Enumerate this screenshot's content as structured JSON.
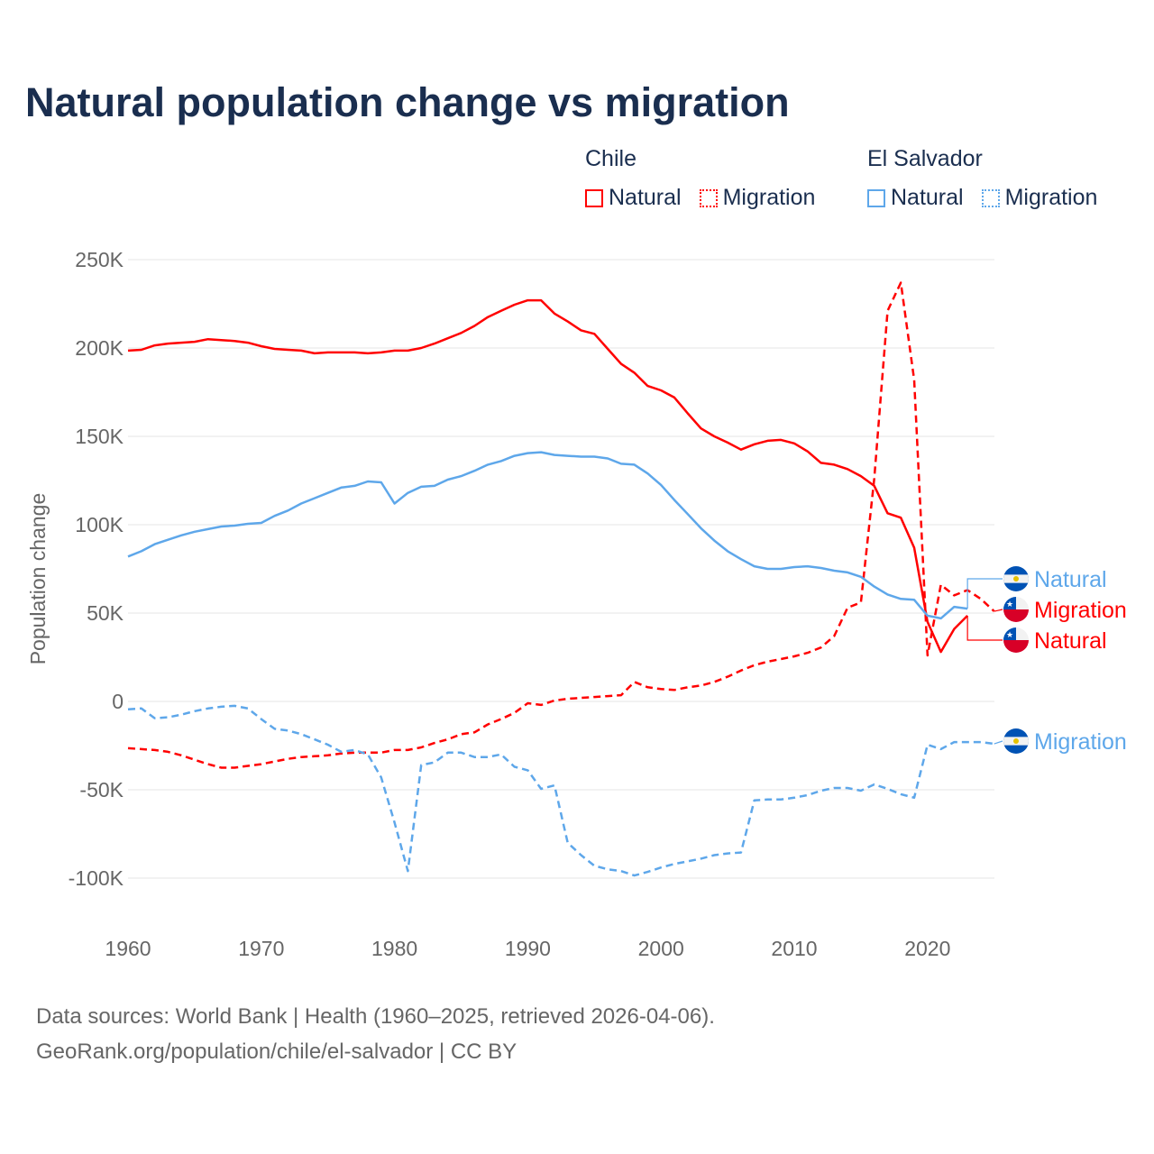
{
  "title": "Natural population change vs migration",
  "legend": {
    "groups": [
      {
        "name": "Chile",
        "items": [
          {
            "label": "Natural",
            "style": "solid",
            "color": "#ff0000"
          },
          {
            "label": "Migration",
            "style": "dotted",
            "color": "#ff0000"
          }
        ]
      },
      {
        "name": "El Salvador",
        "items": [
          {
            "label": "Natural",
            "style": "solid",
            "color": "#5ea7ea"
          },
          {
            "label": "Migration",
            "style": "dotted",
            "color": "#5ea7ea"
          }
        ]
      }
    ]
  },
  "footer": {
    "line1": "Data sources: World Bank | Health (1960–2025, retrieved 2026-04-06).",
    "line2": "GeoRank.org/population/chile/el-salvador | CC BY"
  },
  "chart_data": {
    "type": "line",
    "title": "Natural population change vs migration",
    "xlabel": "",
    "ylabel": "Population change",
    "xlim": [
      1960,
      2025
    ],
    "ylim": [
      -120000,
      250000
    ],
    "grid": true,
    "legend_position": "top-right",
    "x_ticks": [
      1960,
      1970,
      1980,
      1990,
      2000,
      2010,
      2020
    ],
    "y_ticks": [
      {
        "v": 250000,
        "label": "250K"
      },
      {
        "v": 200000,
        "label": "200K"
      },
      {
        "v": 150000,
        "label": "150K"
      },
      {
        "v": 100000,
        "label": "100K"
      },
      {
        "v": 50000,
        "label": "50K"
      },
      {
        "v": 0,
        "label": "0"
      },
      {
        "v": -50000,
        "label": "-50K"
      },
      {
        "v": -100000,
        "label": "-100K"
      }
    ],
    "series": [
      {
        "name": "Chile Natural",
        "country": "Chile",
        "end_label": "Natural",
        "color": "#ff0000",
        "dash": "solid",
        "flag": "chile",
        "start": 1960,
        "values": [
          198.5,
          199,
          201.5,
          202.5,
          203,
          203.5,
          205,
          204.5,
          204,
          203,
          201,
          199.5,
          199,
          198.5,
          197,
          197.5,
          197.5,
          197.5,
          197,
          197.5,
          198.5,
          198.5,
          200,
          202.5,
          205.5,
          208.5,
          212.5,
          217.5,
          221,
          224.5,
          227,
          227,
          219.5,
          215,
          210,
          208,
          199.5,
          191,
          186,
          178.5,
          176,
          172,
          163,
          154.5,
          150,
          146.5,
          142.5,
          145.5,
          147.5,
          148,
          146,
          141.5,
          135,
          134,
          131.5,
          127.5,
          122,
          106.5,
          104,
          87,
          45,
          28,
          41,
          48.5
        ]
      },
      {
        "name": "Chile Migration",
        "country": "Chile",
        "end_label": "Migration",
        "color": "#ff0000",
        "dash": "dashed",
        "flag": "chile",
        "start": 1960,
        "values": [
          -26.5,
          -27,
          -27.5,
          -28.5,
          -30.5,
          -33,
          -35.5,
          -37.5,
          -37.5,
          -36.5,
          -35.5,
          -34,
          -32.5,
          -31.5,
          -31,
          -30.5,
          -29.5,
          -29,
          -29,
          -29,
          -27.5,
          -27.5,
          -26,
          -23.5,
          -21.5,
          -18.5,
          -17.5,
          -13,
          -10,
          -6.5,
          -1,
          -2,
          0.5,
          1.5,
          2,
          2.5,
          3,
          3.5,
          11,
          8,
          7,
          6.5,
          8,
          9,
          11,
          14,
          17.5,
          20.5,
          22.5,
          24,
          25.5,
          27.5,
          30.5,
          37,
          53,
          56,
          126,
          221,
          237,
          182,
          26,
          66,
          60,
          63,
          58,
          51
        ]
      },
      {
        "name": "El Salvador Natural",
        "country": "El Salvador",
        "end_label": "Natural",
        "color": "#5ea7ea",
        "dash": "solid",
        "flag": "el-salvador",
        "start": 1960,
        "values": [
          82,
          85,
          89,
          91.5,
          94,
          96,
          97.5,
          99,
          99.5,
          100.5,
          101,
          105,
          108,
          112,
          115,
          118,
          121,
          122,
          124.5,
          124,
          112,
          118,
          121.5,
          122,
          125.5,
          127.5,
          130.5,
          134,
          136,
          139,
          140.5,
          141,
          139.5,
          139,
          138.5,
          138.5,
          137.5,
          134.5,
          134,
          129,
          122.5,
          114,
          106,
          98,
          91,
          85,
          80.5,
          76.5,
          75,
          75,
          76,
          76.5,
          75.5,
          74,
          73,
          70.5,
          65,
          60.5,
          58,
          57.5,
          48.5,
          47,
          53.5,
          52.5
        ]
      },
      {
        "name": "El Salvador Migration",
        "country": "El Salvador",
        "end_label": "Migration",
        "color": "#5ea7ea",
        "dash": "dashed",
        "flag": "el-salvador",
        "start": 1960,
        "values": [
          -4.5,
          -4,
          -9.5,
          -9,
          -7.5,
          -5.5,
          -4,
          -3,
          -2.5,
          -4,
          -10,
          -15.5,
          -16.5,
          -18.5,
          -21.5,
          -24.5,
          -28.5,
          -27.5,
          -30,
          -43,
          -68.5,
          -96,
          -36,
          -34.5,
          -29,
          -29,
          -31.5,
          -31.5,
          -30,
          -37,
          -39,
          -49.5,
          -47.5,
          -80,
          -87,
          -93,
          -95,
          -96,
          -98.5,
          -96.5,
          -94,
          -92,
          -90.5,
          -89,
          -87,
          -86,
          -85.5,
          -56,
          -55.5,
          -55.5,
          -54.5,
          -53,
          -50.5,
          -49,
          -49,
          -50.5,
          -47,
          -49.5,
          -52.5,
          -54.5,
          -24.5,
          -27,
          -23,
          -23,
          -23,
          -24
        ]
      }
    ],
    "value_unit": "thousands"
  }
}
